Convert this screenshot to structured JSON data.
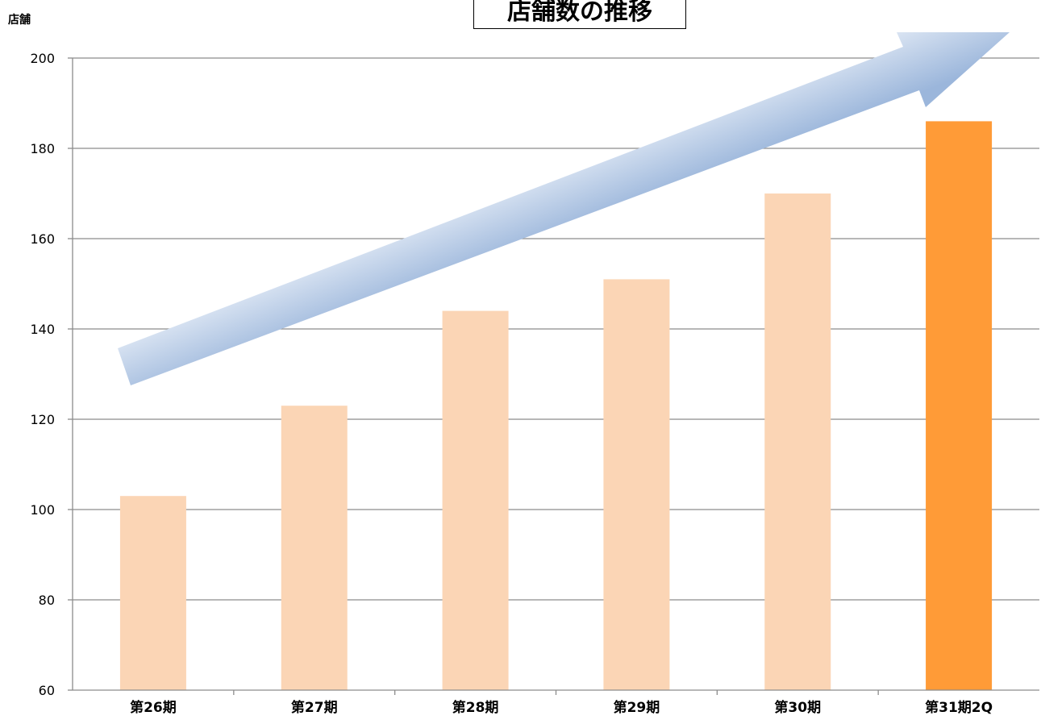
{
  "chart_data": {
    "type": "bar",
    "title": "店舗数の推移",
    "ylabel": "店舗",
    "xlabel": "",
    "categories": [
      "第26期",
      "第27期",
      "第28期",
      "第29期",
      "第30期",
      "第31期2Q"
    ],
    "values": [
      103,
      123,
      144,
      151,
      170,
      186
    ],
    "ylim": [
      60,
      200
    ],
    "yticks": [
      60,
      80,
      100,
      120,
      140,
      160,
      180,
      200
    ],
    "grid": true,
    "legend": "none",
    "colors": {
      "bar": "#FBD5B5",
      "highlight_bar": "#FF9B37",
      "grid": "#8C8C8C",
      "axis": "#8C8C8C",
      "arrow_light": "#EEF3FA",
      "arrow_dark": "#9BB6DB"
    },
    "highlight_index": 5,
    "annotations": [
      {
        "type": "trend-arrow",
        "direction": "up-right"
      }
    ]
  }
}
